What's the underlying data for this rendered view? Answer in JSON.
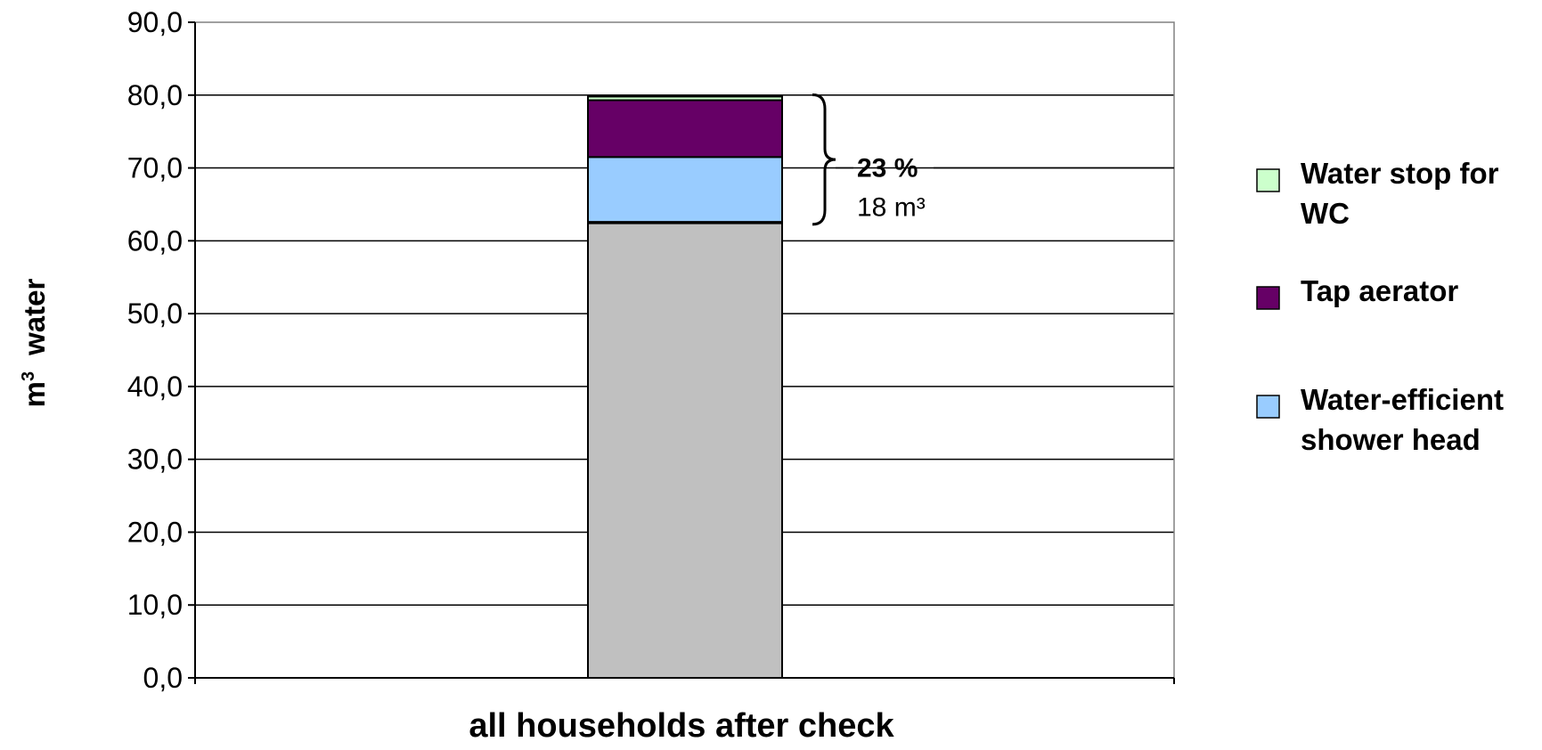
{
  "chart_data": {
    "type": "bar",
    "stacked": true,
    "categories": [
      "all households after check"
    ],
    "xlabel": "all households after check",
    "ylabel_prefix": "m",
    "ylabel_sup": "3",
    "ylabel_suffix": "water",
    "ylim": [
      0,
      90
    ],
    "ytick_values": [
      0,
      10,
      20,
      30,
      40,
      50,
      60,
      70,
      80,
      90
    ],
    "ytick_labels": [
      "0,0",
      "10,0",
      "20,0",
      "30,0",
      "40,0",
      "50,0",
      "60,0",
      "70,0",
      "80,0",
      "90,0"
    ],
    "grid": true,
    "legend_position": "right",
    "series": [
      {
        "key": "base",
        "values": [
          62.5
        ],
        "color": "#c0c0c0"
      },
      {
        "key": "shower",
        "name": "Water-efficient shower head",
        "values": [
          9.0
        ],
        "color": "#99ccff"
      },
      {
        "key": "tap",
        "name": "Tap aerator",
        "values": [
          7.8
        ],
        "color": "#660066"
      },
      {
        "key": "wc",
        "name": "Water stop for WC",
        "values": [
          0.5
        ],
        "color": "#ccffcc"
      }
    ],
    "annotation": {
      "percent": "23 %",
      "volume": "18 m³",
      "from": 62.5,
      "to": 79.8
    },
    "legend": [
      {
        "series": "wc",
        "lines": [
          "Water stop for",
          "WC"
        ],
        "color": "#ccffcc"
      },
      {
        "series": "tap",
        "lines": [
          "Tap aerator"
        ],
        "color": "#660066"
      },
      {
        "series": "shower",
        "lines": [
          "Water-efficient",
          "shower head"
        ],
        "color": "#99ccff"
      }
    ]
  }
}
